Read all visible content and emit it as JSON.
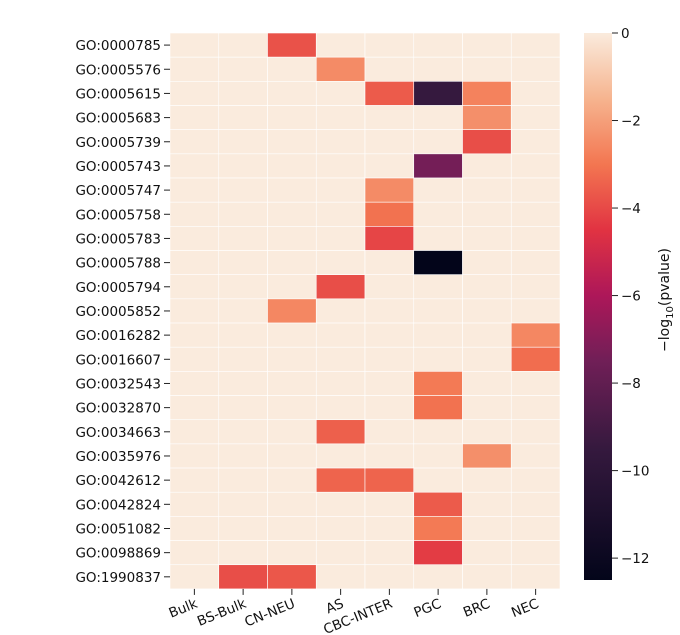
{
  "chart_data": {
    "type": "heatmap",
    "title": "",
    "xlabel": "",
    "ylabel": "",
    "colorbar_label": "−log₁₀(pvalue)",
    "colorbar_label_parts": {
      "prefix": "−log",
      "sub": "10",
      "suffix": "(pvalue)"
    },
    "colorbar_range": [
      -12.5,
      0
    ],
    "colorbar_ticks": [
      0,
      -2,
      -4,
      -6,
      -8,
      -10,
      -12
    ],
    "colorbar_tick_labels": [
      "0",
      "−2",
      "−4",
      "−6",
      "−8",
      "−10",
      "−12"
    ],
    "colormap_stops": [
      {
        "v": 0,
        "color": "#faebdd"
      },
      {
        "v": -1.5,
        "color": "#f6b48f"
      },
      {
        "v": -3,
        "color": "#f37651"
      },
      {
        "v": -4.5,
        "color": "#e13342"
      },
      {
        "v": -6,
        "color": "#ad1759"
      },
      {
        "v": -7.5,
        "color": "#701f57"
      },
      {
        "v": -9.5,
        "color": "#35193e"
      },
      {
        "v": -12.5,
        "color": "#03051a"
      }
    ],
    "x_categories": [
      "Bulk",
      "BS-Bulk",
      "CN-NEU",
      "AS",
      "CBC-INTER",
      "PGC",
      "BRC",
      "NEC"
    ],
    "y_categories": [
      "GO:0000785",
      "GO:0005576",
      "GO:0005615",
      "GO:0005683",
      "GO:0005739",
      "GO:0005743",
      "GO:0005747",
      "GO:0005758",
      "GO:0005783",
      "GO:0005788",
      "GO:0005794",
      "GO:0005852",
      "GO:0016282",
      "GO:0016607",
      "GO:0032543",
      "GO:0032870",
      "GO:0034663",
      "GO:0035976",
      "GO:0042612",
      "GO:0042824",
      "GO:0051082",
      "GO:0098869",
      "GO:1990837"
    ],
    "values": [
      [
        0,
        0,
        -3.8,
        0,
        0,
        0,
        0,
        0
      ],
      [
        0,
        0,
        0,
        -2.5,
        0,
        0,
        0,
        0
      ],
      [
        0,
        0,
        0,
        0,
        -3.6,
        -9.5,
        -2.7,
        0
      ],
      [
        0,
        0,
        0,
        0,
        0,
        0,
        -2.4,
        0
      ],
      [
        0,
        0,
        0,
        0,
        0,
        0,
        -3.9,
        0
      ],
      [
        0,
        0,
        0,
        0,
        0,
        -7.4,
        0,
        0
      ],
      [
        0,
        0,
        0,
        0,
        -2.5,
        0,
        0,
        0
      ],
      [
        0,
        0,
        0,
        0,
        -3.1,
        0,
        0,
        0
      ],
      [
        0,
        0,
        0,
        0,
        -4.1,
        0,
        0,
        0
      ],
      [
        0,
        0,
        0,
        0,
        0,
        -12.5,
        0,
        0
      ],
      [
        0,
        0,
        0,
        -3.9,
        0,
        0,
        0,
        0
      ],
      [
        0,
        0,
        -2.6,
        0,
        0,
        0,
        0,
        0
      ],
      [
        0,
        0,
        0,
        0,
        0,
        0,
        0,
        -2.6
      ],
      [
        0,
        0,
        0,
        0,
        0,
        0,
        0,
        -3.2
      ],
      [
        0,
        0,
        0,
        0,
        0,
        -2.9,
        0,
        0
      ],
      [
        0,
        0,
        0,
        0,
        0,
        -3.1,
        0,
        0
      ],
      [
        0,
        0,
        0,
        -3.5,
        0,
        0,
        0,
        0
      ],
      [
        0,
        0,
        0,
        0,
        0,
        0,
        -2.4,
        0
      ],
      [
        0,
        0,
        0,
        -3.4,
        -3.4,
        0,
        0,
        0
      ],
      [
        0,
        0,
        0,
        0,
        0,
        -3.6,
        0,
        0
      ],
      [
        0,
        0,
        0,
        0,
        0,
        -2.9,
        0,
        0
      ],
      [
        0,
        0,
        0,
        0,
        0,
        -4.3,
        0,
        0
      ],
      [
        0,
        -3.9,
        -3.7,
        0,
        0,
        0,
        0,
        0
      ]
    ]
  }
}
